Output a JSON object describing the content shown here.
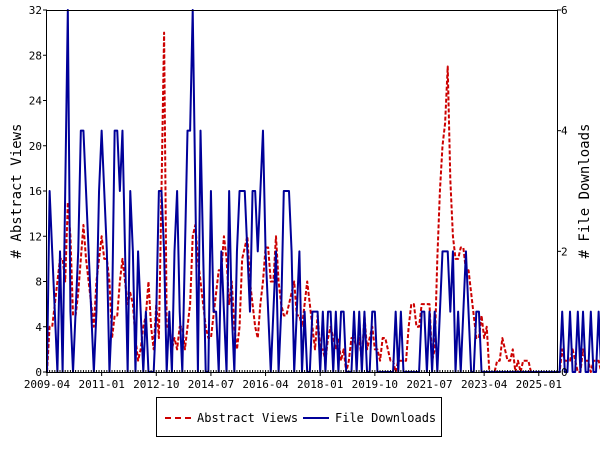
{
  "chart_data": {
    "type": "line",
    "x_unit": "month",
    "x_range": [
      "2009-04",
      "2025-08"
    ],
    "x_tick_labels": [
      "2009-04",
      "2011-01",
      "2012-10",
      "2014-07",
      "2016-04",
      "2018-01",
      "2019-10",
      "2021-07",
      "2023-04",
      "2025-01"
    ],
    "ylabel": "# Abstract Views",
    "ylabel_right": "# File Downloads",
    "ylim": [
      0,
      32
    ],
    "ylim_right": [
      0,
      6
    ],
    "yticks": [
      0,
      4,
      8,
      12,
      16,
      20,
      24,
      28,
      32
    ],
    "yticks_right": [
      0,
      2,
      4,
      6
    ],
    "grid": false,
    "legend_position": "bottom",
    "series": [
      {
        "name": "Abstract Views",
        "axis": "left",
        "color": "#cc0000",
        "style": "dashed",
        "x_start": "2009-04",
        "values": [
          0,
          4,
          4,
          6,
          8,
          10,
          10,
          8,
          15,
          12,
          5,
          5,
          7,
          10,
          13,
          10,
          8,
          6,
          4,
          8,
          10,
          12,
          10,
          10,
          8,
          3,
          5,
          5,
          8,
          10,
          8,
          6,
          7,
          6,
          3,
          1,
          2,
          4,
          5,
          8,
          4,
          2,
          6,
          3,
          16,
          30,
          4,
          4,
          2,
          3,
          2,
          4,
          4,
          2,
          4,
          6,
          12,
          13,
          10,
          8,
          6,
          4,
          3,
          3,
          5,
          7,
          9,
          9,
          12,
          10,
          6,
          8,
          4,
          2,
          4,
          10,
          11,
          12,
          8,
          6,
          4,
          3,
          6,
          8,
          11,
          11,
          8,
          8,
          12,
          8,
          6,
          5,
          5,
          6,
          7,
          8,
          5,
          5,
          4,
          6,
          8,
          6,
          4,
          2,
          5,
          2,
          2,
          1,
          3,
          4,
          3,
          2,
          3,
          1,
          2,
          0,
          1,
          3,
          3,
          2,
          3,
          1,
          5,
          2,
          3,
          4,
          2,
          2,
          1,
          3,
          3,
          2,
          1,
          1,
          0,
          1,
          1,
          1,
          1,
          4,
          6,
          6,
          4,
          4,
          6,
          6,
          6,
          6,
          1,
          2,
          10,
          16,
          20,
          22,
          27,
          17,
          12,
          10,
          10,
          11,
          11,
          9,
          9,
          7,
          5,
          3,
          3,
          5,
          3,
          4,
          0,
          0,
          0,
          1,
          1,
          3,
          2,
          1,
          1,
          2,
          0,
          1,
          0,
          1,
          1,
          1,
          0,
          0,
          0,
          0,
          0,
          0,
          0,
          0,
          0,
          0,
          0,
          0,
          2,
          1,
          1,
          1,
          2,
          1,
          0,
          0,
          2,
          1,
          1,
          0,
          1,
          1,
          1,
          0,
          1,
          0,
          1,
          1,
          1,
          0,
          1,
          1,
          2,
          2,
          0,
          0,
          0
        ]
      },
      {
        "name": "File Downloads",
        "axis": "right",
        "color": "#000099",
        "style": "solid",
        "x_start": "2009-04",
        "values": [
          0,
          3,
          2,
          1,
          0,
          2,
          0,
          3,
          6,
          1,
          0,
          1,
          2,
          4,
          4,
          3,
          2,
          1,
          0,
          1,
          3,
          4,
          3,
          2,
          0,
          1,
          4,
          4,
          3,
          4,
          2,
          0,
          3,
          2,
          0,
          2,
          1,
          0,
          1,
          0,
          0,
          0,
          1,
          3,
          3,
          2,
          0,
          1,
          0,
          2,
          3,
          1,
          0,
          2,
          4,
          4,
          6,
          3,
          0,
          4,
          2,
          0,
          0,
          3,
          1,
          1,
          0,
          2,
          1,
          0,
          3,
          1,
          0,
          2,
          3,
          3,
          3,
          2,
          1,
          3,
          3,
          2,
          3,
          4,
          2,
          1,
          0,
          1,
          2,
          0,
          1,
          3,
          3,
          3,
          2,
          0,
          1,
          2,
          0,
          1,
          0,
          0,
          1,
          1,
          1,
          0,
          1,
          0,
          1,
          1,
          0,
          1,
          0,
          1,
          1,
          0,
          0,
          0,
          1,
          0,
          1,
          0,
          1,
          0,
          0,
          1,
          1,
          0,
          0,
          0,
          0,
          0,
          0,
          0,
          1,
          0,
          1,
          0,
          0,
          0,
          0,
          0,
          0,
          0,
          1,
          1,
          0,
          1,
          0,
          1,
          0,
          1,
          2,
          2,
          2,
          1,
          2,
          0,
          1,
          0,
          1,
          2,
          1,
          0,
          0,
          1,
          1,
          0,
          0,
          0,
          0,
          0,
          0,
          0,
          0,
          0,
          0,
          0,
          0,
          0,
          0,
          0,
          0,
          0,
          0,
          0,
          0,
          0,
          0,
          0,
          0,
          0,
          0,
          0,
          0,
          0,
          0,
          0,
          1,
          0,
          0,
          1,
          0,
          0,
          1,
          0,
          1,
          0,
          0,
          1,
          0,
          0,
          1,
          0,
          0,
          0,
          1,
          0,
          0,
          0,
          0,
          1,
          0,
          0
        ]
      }
    ]
  },
  "legend": {
    "items": [
      {
        "label": "Abstract Views",
        "color": "#cc0000",
        "style": "dashed"
      },
      {
        "label": "File Downloads",
        "color": "#000099",
        "style": "solid"
      }
    ]
  }
}
